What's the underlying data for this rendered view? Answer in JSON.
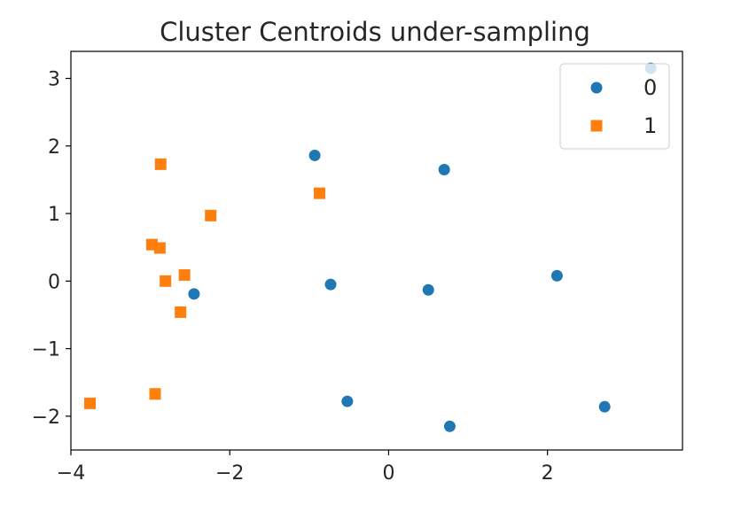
{
  "chart_data": {
    "type": "scatter",
    "title": "Cluster Centroids under-sampling",
    "xlabel": "",
    "ylabel": "",
    "xlim": [
      -4.0,
      3.7
    ],
    "ylim": [
      -2.5,
      3.4
    ],
    "xticks": [
      -4,
      -2,
      0,
      2
    ],
    "yticks": [
      -2,
      -1,
      0,
      1,
      2,
      3
    ],
    "xtick_labels": [
      "−4",
      "−2",
      "0",
      "2"
    ],
    "ytick_labels": [
      "−2",
      "−1",
      "0",
      "1",
      "2",
      "3"
    ],
    "grid": false,
    "legend_position": "top-right",
    "series": [
      {
        "name": "0",
        "marker": "circle",
        "color": "#1f77b4",
        "points": [
          [
            -0.93,
            1.86
          ],
          [
            0.7,
            1.65
          ],
          [
            3.3,
            3.15
          ],
          [
            -2.45,
            -0.19
          ],
          [
            -0.73,
            -0.05
          ],
          [
            0.5,
            -0.13
          ],
          [
            2.12,
            0.08
          ],
          [
            -0.52,
            -1.78
          ],
          [
            0.77,
            -2.15
          ],
          [
            2.72,
            -1.86
          ]
        ]
      },
      {
        "name": "1",
        "marker": "square",
        "color": "#ff7f0e",
        "points": [
          [
            -2.87,
            1.73
          ],
          [
            -2.24,
            0.97
          ],
          [
            -0.87,
            1.3
          ],
          [
            -2.98,
            0.54
          ],
          [
            -2.88,
            0.49
          ],
          [
            -2.57,
            0.09
          ],
          [
            -2.81,
            0.0
          ],
          [
            -2.62,
            -0.46
          ],
          [
            -3.76,
            -1.81
          ],
          [
            -2.94,
            -1.67
          ]
        ]
      }
    ]
  }
}
